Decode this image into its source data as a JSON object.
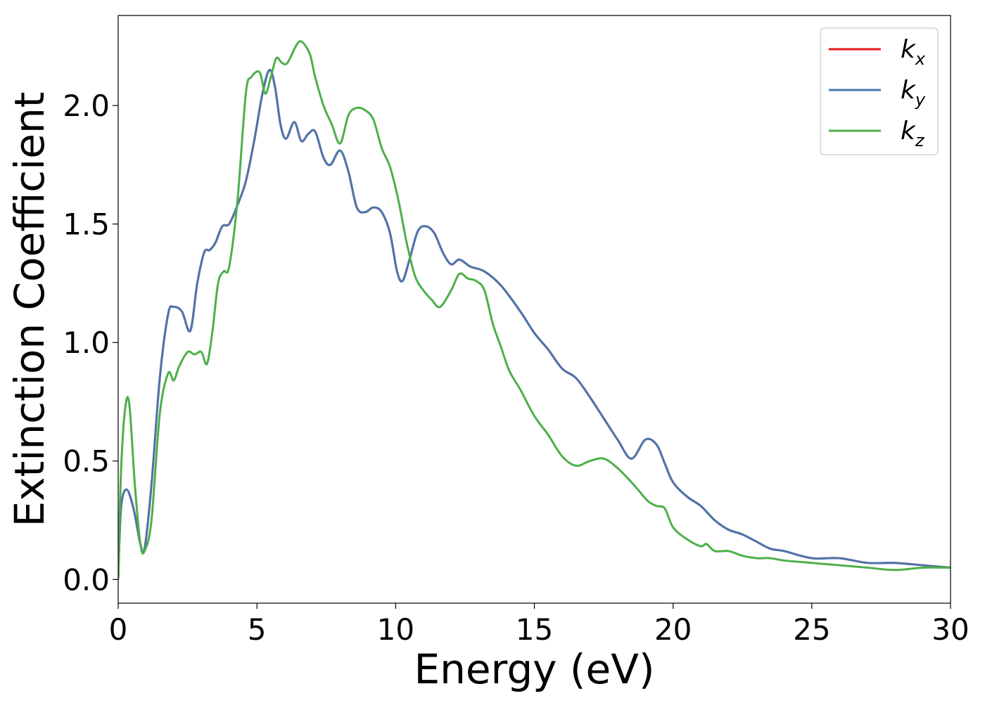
{
  "chart_data": {
    "type": "line",
    "title": "",
    "xlabel": "Energy (eV)",
    "ylabel": "Extinction Coefficient",
    "xlim": [
      0,
      30
    ],
    "ylim": [
      -0.1,
      2.38
    ],
    "xticks": [
      0,
      5,
      10,
      15,
      20,
      25,
      30
    ],
    "xtick_labels": [
      "0",
      "5",
      "10",
      "15",
      "20",
      "25",
      "30"
    ],
    "yticks": [
      0.0,
      0.5,
      1.0,
      1.5,
      2.0
    ],
    "ytick_labels": [
      "0.0",
      "0.5",
      "1.0",
      "1.5",
      "2.0"
    ],
    "grid": false,
    "legend_position": "top-right",
    "series": [
      {
        "name": "k_x",
        "label_base": "k",
        "label_sub": "x",
        "color": "#e41a1c",
        "x": [
          0,
          0.1,
          0.3,
          0.55,
          0.8,
          0.95,
          1.2,
          1.5,
          1.8,
          2.0,
          2.3,
          2.6,
          2.85,
          3.1,
          3.3,
          3.5,
          3.75,
          4.0,
          4.3,
          4.6,
          4.9,
          5.2,
          5.45,
          5.65,
          5.85,
          6.05,
          6.35,
          6.6,
          6.85,
          7.1,
          7.4,
          7.65,
          8.0,
          8.3,
          8.6,
          8.9,
          9.2,
          9.5,
          9.8,
          10.05,
          10.25,
          10.5,
          10.8,
          11.1,
          11.4,
          11.7,
          12.0,
          12.3,
          12.7,
          13.2,
          13.8,
          14.5,
          15.0,
          15.5,
          16.0,
          16.5,
          17.0,
          17.5,
          18.0,
          18.5,
          19.0,
          19.4,
          19.7,
          20.0,
          20.5,
          21.0,
          21.5,
          22.0,
          22.5,
          23.0,
          23.5,
          24.0,
          25.0,
          26.0,
          27.0,
          28.0,
          29.0,
          30.0
        ],
        "y": [
          0,
          0.3,
          0.38,
          0.3,
          0.15,
          0.13,
          0.4,
          0.85,
          1.12,
          1.15,
          1.13,
          1.05,
          1.25,
          1.38,
          1.39,
          1.42,
          1.49,
          1.5,
          1.58,
          1.68,
          1.85,
          2.05,
          2.15,
          2.08,
          1.92,
          1.86,
          1.93,
          1.85,
          1.88,
          1.89,
          1.78,
          1.75,
          1.81,
          1.72,
          1.57,
          1.55,
          1.57,
          1.55,
          1.46,
          1.3,
          1.26,
          1.35,
          1.47,
          1.49,
          1.46,
          1.38,
          1.33,
          1.35,
          1.32,
          1.3,
          1.24,
          1.13,
          1.04,
          0.97,
          0.89,
          0.85,
          0.77,
          0.68,
          0.59,
          0.51,
          0.59,
          0.57,
          0.49,
          0.41,
          0.35,
          0.31,
          0.25,
          0.21,
          0.19,
          0.16,
          0.13,
          0.12,
          0.09,
          0.09,
          0.07,
          0.07,
          0.06,
          0.05
        ]
      },
      {
        "name": "k_y",
        "label_base": "k",
        "label_sub": "y",
        "color": "#4a76ad",
        "x": [
          0,
          0.1,
          0.3,
          0.55,
          0.8,
          0.95,
          1.2,
          1.5,
          1.8,
          2.0,
          2.3,
          2.6,
          2.85,
          3.1,
          3.3,
          3.5,
          3.75,
          4.0,
          4.3,
          4.6,
          4.9,
          5.2,
          5.45,
          5.65,
          5.85,
          6.05,
          6.35,
          6.6,
          6.85,
          7.1,
          7.4,
          7.65,
          8.0,
          8.3,
          8.6,
          8.9,
          9.2,
          9.5,
          9.8,
          10.05,
          10.25,
          10.5,
          10.8,
          11.1,
          11.4,
          11.7,
          12.0,
          12.3,
          12.7,
          13.2,
          13.8,
          14.5,
          15.0,
          15.5,
          16.0,
          16.5,
          17.0,
          17.5,
          18.0,
          18.5,
          19.0,
          19.4,
          19.7,
          20.0,
          20.5,
          21.0,
          21.5,
          22.0,
          22.5,
          23.0,
          23.5,
          24.0,
          25.0,
          26.0,
          27.0,
          28.0,
          29.0,
          30.0
        ],
        "y": [
          0,
          0.3,
          0.38,
          0.3,
          0.15,
          0.13,
          0.4,
          0.85,
          1.12,
          1.15,
          1.13,
          1.05,
          1.25,
          1.38,
          1.39,
          1.42,
          1.49,
          1.5,
          1.58,
          1.68,
          1.85,
          2.05,
          2.15,
          2.08,
          1.92,
          1.86,
          1.93,
          1.85,
          1.88,
          1.89,
          1.78,
          1.75,
          1.81,
          1.72,
          1.57,
          1.55,
          1.57,
          1.55,
          1.46,
          1.3,
          1.26,
          1.35,
          1.47,
          1.49,
          1.46,
          1.38,
          1.33,
          1.35,
          1.32,
          1.3,
          1.24,
          1.13,
          1.04,
          0.97,
          0.89,
          0.85,
          0.77,
          0.68,
          0.59,
          0.51,
          0.59,
          0.57,
          0.49,
          0.41,
          0.35,
          0.31,
          0.25,
          0.21,
          0.19,
          0.16,
          0.13,
          0.12,
          0.09,
          0.09,
          0.07,
          0.07,
          0.06,
          0.05
        ]
      },
      {
        "name": "k_z",
        "label_base": "k",
        "label_sub": "z",
        "color": "#4daf4a",
        "x": [
          0,
          0.1,
          0.25,
          0.4,
          0.6,
          0.8,
          0.95,
          1.2,
          1.5,
          1.8,
          2.0,
          2.2,
          2.5,
          2.75,
          3.0,
          3.2,
          3.4,
          3.6,
          3.8,
          4.0,
          4.3,
          4.6,
          4.8,
          5.1,
          5.3,
          5.5,
          5.7,
          5.9,
          6.1,
          6.4,
          6.6,
          6.9,
          7.1,
          7.4,
          7.7,
          8.0,
          8.3,
          8.6,
          8.9,
          9.2,
          9.5,
          9.8,
          10.1,
          10.4,
          10.7,
          11.0,
          11.3,
          11.6,
          12.0,
          12.3,
          12.6,
          12.9,
          13.2,
          13.5,
          13.8,
          14.1,
          14.5,
          15.0,
          15.5,
          16.0,
          16.5,
          17.0,
          17.5,
          18.0,
          18.5,
          18.8,
          19.1,
          19.4,
          19.7,
          20.0,
          20.5,
          21.0,
          21.2,
          21.5,
          22.0,
          22.5,
          23.0,
          23.5,
          24.0,
          25.0,
          26.0,
          27.0,
          28.0,
          29.0,
          30.0
        ],
        "y": [
          0,
          0.45,
          0.72,
          0.74,
          0.4,
          0.15,
          0.12,
          0.25,
          0.7,
          0.87,
          0.84,
          0.9,
          0.96,
          0.95,
          0.96,
          0.91,
          1.05,
          1.25,
          1.3,
          1.32,
          1.6,
          2.05,
          2.12,
          2.14,
          2.05,
          2.12,
          2.2,
          2.18,
          2.18,
          2.25,
          2.27,
          2.22,
          2.12,
          2.0,
          1.92,
          1.84,
          1.96,
          1.99,
          1.98,
          1.94,
          1.82,
          1.74,
          1.6,
          1.42,
          1.28,
          1.22,
          1.18,
          1.15,
          1.22,
          1.29,
          1.27,
          1.26,
          1.22,
          1.08,
          0.98,
          0.88,
          0.8,
          0.69,
          0.61,
          0.52,
          0.48,
          0.5,
          0.51,
          0.47,
          0.41,
          0.37,
          0.33,
          0.31,
          0.3,
          0.22,
          0.17,
          0.14,
          0.15,
          0.12,
          0.12,
          0.1,
          0.09,
          0.09,
          0.08,
          0.07,
          0.06,
          0.05,
          0.04,
          0.05,
          0.05
        ]
      }
    ]
  }
}
